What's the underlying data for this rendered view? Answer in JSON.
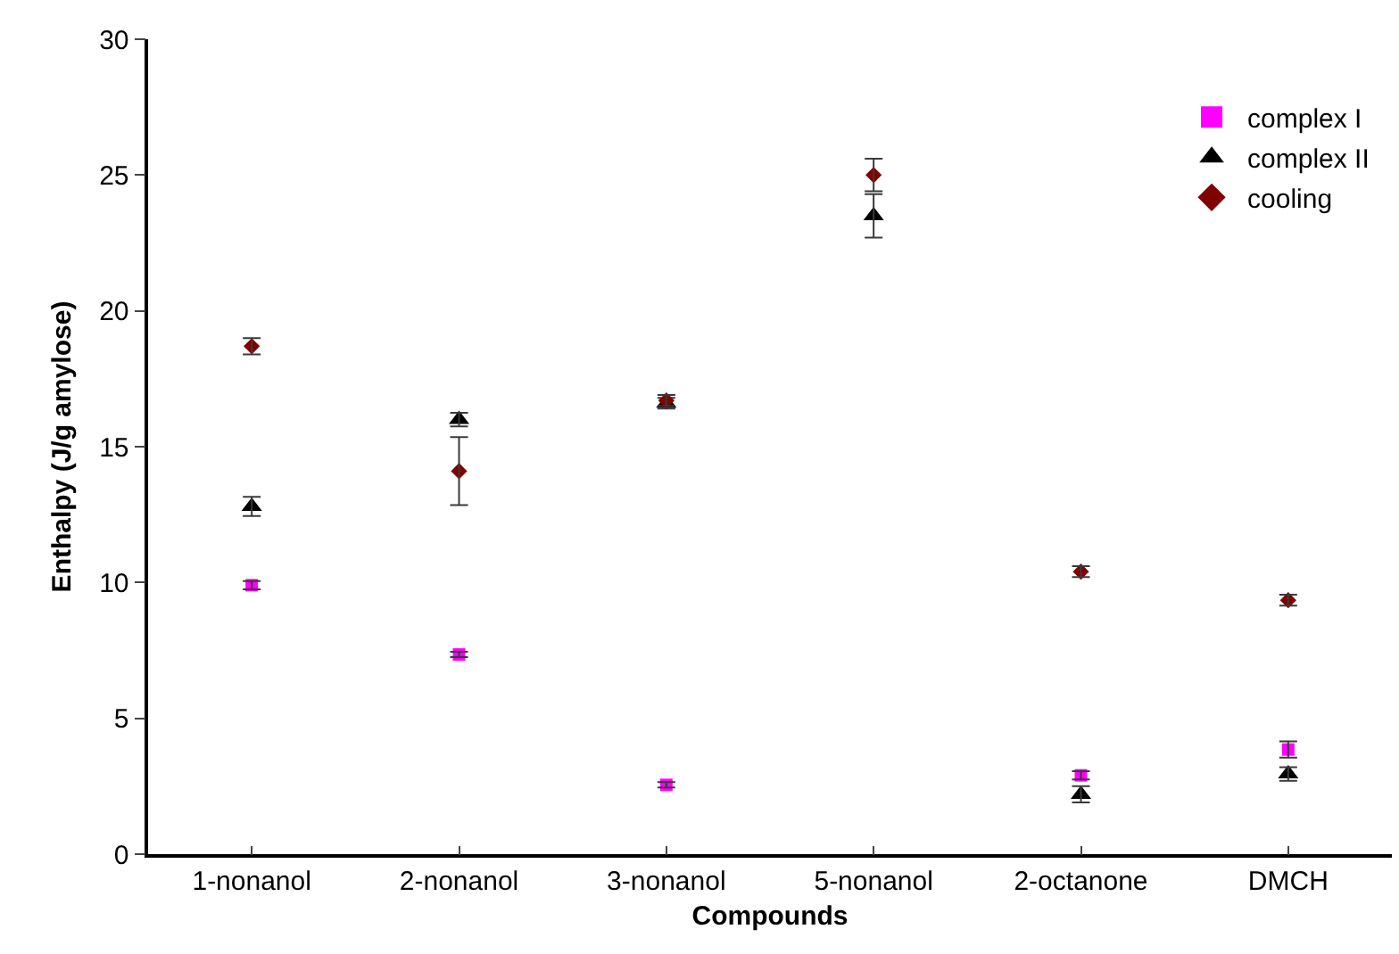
{
  "chart_data": {
    "type": "scatter",
    "xlabel": "Compounds",
    "ylabel": "Enthalpy (J/g amylose)",
    "categories": [
      "1-nonanol",
      "2-nonanol",
      "3-nonanol",
      "5-nonanol",
      "2-octanone",
      "DMCH"
    ],
    "series": [
      {
        "name": "complex I",
        "color": "#ff00ff",
        "marker": "square",
        "values": [
          9.9,
          7.35,
          2.55,
          null,
          2.9,
          3.85
        ],
        "errors": [
          0.15,
          0.1,
          0.1,
          null,
          0.15,
          0.3
        ]
      },
      {
        "name": "complex II",
        "color": "#000000",
        "marker": "triangle",
        "values": [
          12.8,
          16.0,
          16.6,
          23.5,
          2.2,
          2.95
        ],
        "errors": [
          0.35,
          0.25,
          0.2,
          0.8,
          0.3,
          0.25
        ]
      },
      {
        "name": "cooling",
        "color": "#800000",
        "marker": "diamond",
        "values": [
          18.7,
          14.1,
          16.7,
          25.0,
          10.4,
          9.35
        ],
        "errors": [
          0.3,
          1.25,
          0.2,
          0.6,
          0.2,
          0.2
        ]
      }
    ],
    "ylim": [
      0,
      30
    ],
    "yticks": [
      0,
      5,
      10,
      15,
      20,
      25,
      30
    ],
    "grid": false,
    "legend": "top right"
  }
}
